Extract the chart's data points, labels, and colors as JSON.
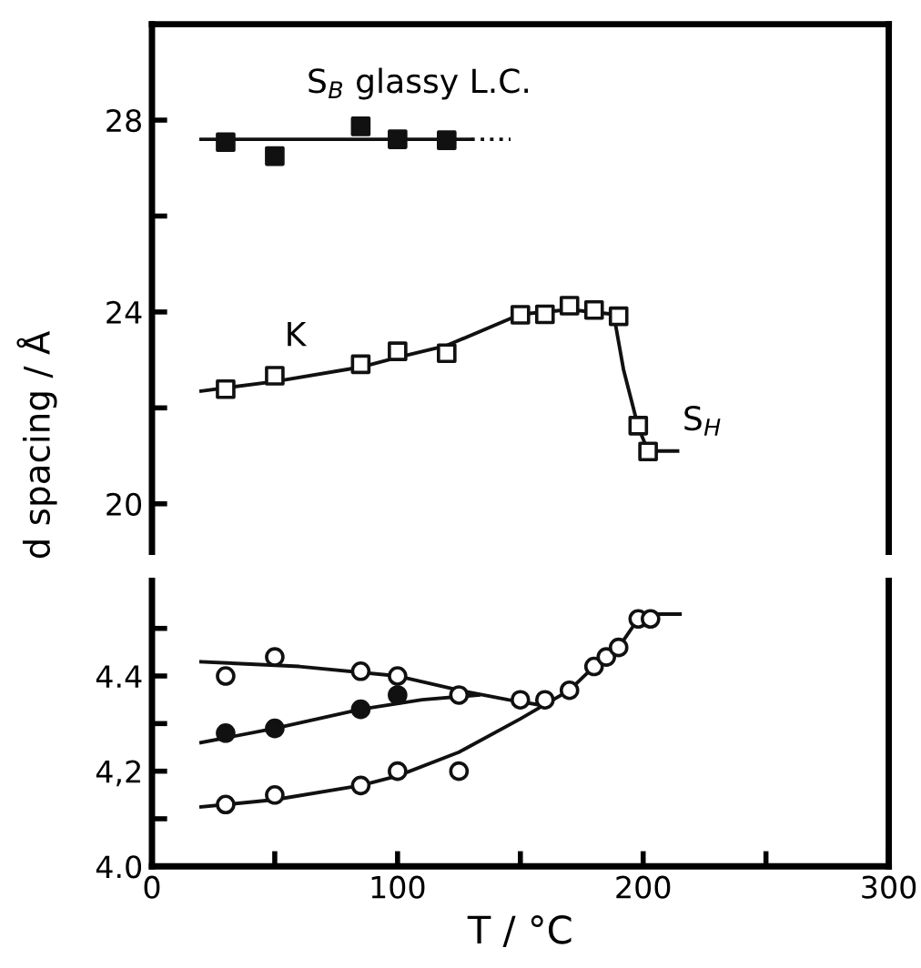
{
  "chart_data": [
    {
      "type": "scatter",
      "ylabel": "d spacing / Å",
      "xlim": [
        0,
        300
      ],
      "ylim": [
        19,
        30
      ],
      "yticks": [
        20,
        {
          "value": 22,
          "label": null
        },
        24,
        {
          "value": 26,
          "label": null
        },
        28
      ],
      "tick_labels": "y",
      "grid": false,
      "legend": false,
      "annotations": [
        "S$_{B}$ glassy L.C.",
        "K",
        "S$_{H}$"
      ],
      "series": [
        {
          "marker": "square",
          "color": "#111111",
          "x": [
            30,
            50,
            85,
            100,
            120
          ],
          "values": [
            27.54,
            27.25,
            27.87,
            27.6,
            27.58
          ]
        },
        {
          "type": "line",
          "marker": "none",
          "line_style": "solid",
          "color": "#111111",
          "x": [
            20,
            130
          ],
          "values": [
            27.6,
            27.6
          ]
        },
        {
          "type": "line",
          "marker": "none",
          "line_style": "dotted",
          "color": "#111111",
          "x": [
            130,
            146
          ],
          "values": [
            27.6,
            27.6
          ]
        },
        {
          "marker": "square",
          "color": "#ffffff",
          "x": [
            30,
            50,
            85,
            100,
            120,
            150,
            160,
            170,
            180,
            190,
            198,
            202
          ],
          "values": [
            22.39,
            22.67,
            22.91,
            23.18,
            23.14,
            23.94,
            23.95,
            24.13,
            24.04,
            23.91,
            21.63,
            21.09
          ]
        },
        {
          "type": "line",
          "marker": "none",
          "line_style": "solid",
          "color": "#111111",
          "x": [
            20,
            50,
            85,
            100,
            120,
            150,
            170,
            188,
            192,
            198,
            202,
            214
          ],
          "values": [
            22.35,
            22.55,
            22.85,
            23.05,
            23.3,
            23.95,
            24.05,
            23.95,
            22.8,
            21.6,
            21.1,
            21.1
          ]
        }
      ]
    },
    {
      "type": "scatter",
      "xlabel": "T / °C",
      "xlim": [
        0,
        300
      ],
      "ylim": [
        4.0,
        4.6
      ],
      "xticks": [
        0,
        {
          "value": 50,
          "label": null
        },
        100,
        {
          "value": 150,
          "label": null
        },
        200,
        {
          "value": 250,
          "label": null
        },
        300
      ],
      "yticks": [
        {
          "value": 4.0,
          "label": "4.0"
        },
        {
          "value": 4.1,
          "label": null
        },
        {
          "value": 4.2,
          "label": "4,2"
        },
        {
          "value": 4.3,
          "label": null
        },
        {
          "value": 4.4,
          "label": "4.4"
        },
        {
          "value": 4.5,
          "label": null
        }
      ],
      "grid": false,
      "legend": false,
      "series": [
        {
          "marker": "circle",
          "color": "#ffffff",
          "x": [
            30,
            50,
            85,
            100,
            125,
            150,
            160,
            170,
            180,
            185,
            190,
            198,
            203
          ],
          "values": [
            4.4,
            4.44,
            4.41,
            4.4,
            4.36,
            4.35,
            4.35,
            4.37,
            4.42,
            4.44,
            4.46,
            4.52,
            4.52
          ]
        },
        {
          "marker": "circle",
          "color": "#ffffff",
          "x": [
            30,
            50,
            85,
            100,
            125
          ],
          "values": [
            4.13,
            4.15,
            4.17,
            4.2,
            4.2
          ]
        },
        {
          "marker": "circle",
          "color": "#111111",
          "x": [
            30,
            50,
            85,
            100
          ],
          "values": [
            4.28,
            4.29,
            4.33,
            4.36
          ]
        },
        {
          "type": "line",
          "marker": "none",
          "line_style": "solid",
          "color": "#111111",
          "x": [
            20,
            60,
            100,
            125,
            145,
            157
          ],
          "values": [
            4.43,
            4.42,
            4.4,
            4.37,
            4.35,
            4.34
          ]
        },
        {
          "type": "line",
          "marker": "none",
          "line_style": "solid",
          "color": "#111111",
          "x": [
            20,
            50,
            85,
            110,
            133
          ],
          "values": [
            4.26,
            4.29,
            4.33,
            4.35,
            4.36
          ]
        },
        {
          "type": "line",
          "marker": "none",
          "line_style": "solid",
          "color": "#111111",
          "x": [
            20,
            50,
            85,
            100,
            125,
            150,
            160,
            170,
            180,
            190,
            198,
            203,
            215
          ],
          "values": [
            4.125,
            4.14,
            4.17,
            4.19,
            4.24,
            4.31,
            4.34,
            4.37,
            4.42,
            4.46,
            4.52,
            4.53,
            4.53
          ]
        }
      ]
    }
  ]
}
